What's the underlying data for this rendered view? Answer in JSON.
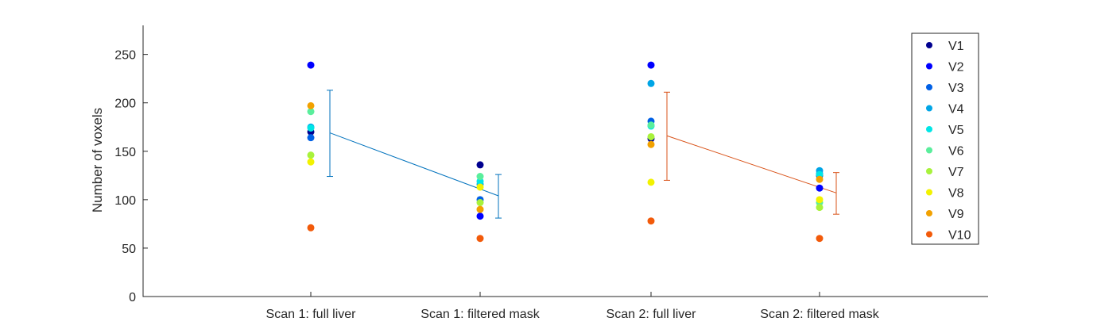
{
  "chart_data": {
    "type": "scatter",
    "title": "",
    "xlabel": "",
    "ylabel": "Number of voxels",
    "ylim": [
      0,
      280
    ],
    "yticks": [
      0,
      50,
      100,
      150,
      200,
      250
    ],
    "categories": [
      "Scan 1: full liver",
      "Scan 1: filtered mask",
      "Scan 2: full liver",
      "Scan 2: filtered mask"
    ],
    "grid": false,
    "legend_position": "top-right",
    "series": [
      {
        "name": "V1",
        "color": "#00008F",
        "values": [
          170,
          136,
          163,
          125
        ]
      },
      {
        "name": "V2",
        "color": "#0000FF",
        "values": [
          239,
          83,
          239,
          112
        ]
      },
      {
        "name": "V3",
        "color": "#0060E6",
        "values": [
          164,
          100,
          181,
          127
        ]
      },
      {
        "name": "V4",
        "color": "#00A5E6",
        "values": [
          175,
          116,
          220,
          130
        ]
      },
      {
        "name": "V5",
        "color": "#00E6E6",
        "values": [
          174,
          119,
          176,
          126
        ]
      },
      {
        "name": "V6",
        "color": "#5AEE9C",
        "values": [
          191,
          124,
          177,
          97
        ]
      },
      {
        "name": "V7",
        "color": "#A8F23C",
        "values": [
          146,
          97,
          165,
          92
        ]
      },
      {
        "name": "V8",
        "color": "#F2F200",
        "values": [
          139,
          113,
          118,
          100
        ]
      },
      {
        "name": "V9",
        "color": "#F2A100",
        "values": [
          197,
          90,
          157,
          121
        ]
      },
      {
        "name": "V10",
        "color": "#F25A0A",
        "values": [
          71,
          60,
          78,
          60
        ]
      }
    ],
    "summary_lines": [
      {
        "color": "#0072BD",
        "from_category": 0,
        "to_category": 1,
        "mean": [
          169,
          104
        ],
        "error_low": [
          124,
          81
        ],
        "error_high": [
          213,
          126
        ]
      },
      {
        "color": "#D95319",
        "from_category": 2,
        "to_category": 3,
        "mean": [
          166,
          107
        ],
        "error_low": [
          120,
          85
        ],
        "error_high": [
          211,
          128
        ]
      }
    ]
  }
}
